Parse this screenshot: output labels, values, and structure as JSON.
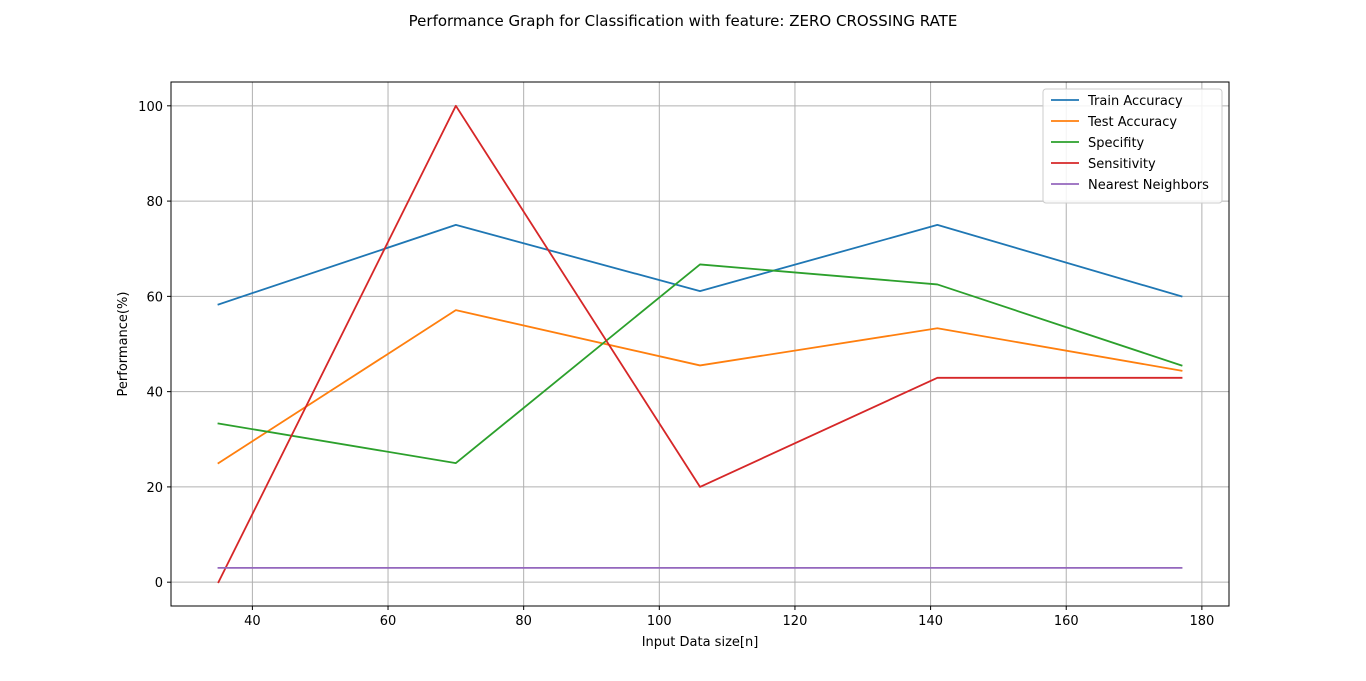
{
  "chart_data": {
    "type": "line",
    "title": "Performance Graph for Classification with feature: ZERO CROSSING RATE",
    "xlabel": "Input Data size[n]",
    "ylabel": "Performance(%)",
    "xlim": [
      28,
      184
    ],
    "ylim": [
      -5,
      105
    ],
    "xticks": [
      40,
      60,
      80,
      100,
      120,
      140,
      160,
      180
    ],
    "yticks": [
      0,
      20,
      40,
      60,
      80,
      100
    ],
    "grid": true,
    "legend_position": "top-right",
    "x": [
      35,
      70,
      106,
      141,
      177
    ],
    "series": [
      {
        "name": "Train Accuracy",
        "color": "#1f77b4",
        "values": [
          58.3,
          75.0,
          61.1,
          75.0,
          60.0
        ]
      },
      {
        "name": "Test Accuracy",
        "color": "#ff7f0e",
        "values": [
          25.0,
          57.1,
          45.5,
          53.3,
          44.4
        ]
      },
      {
        "name": "Specifity",
        "color": "#2ca02c",
        "values": [
          33.3,
          25.0,
          66.7,
          62.5,
          45.5
        ]
      },
      {
        "name": "Sensitivity",
        "color": "#d62728",
        "values": [
          0.0,
          100.0,
          20.0,
          42.9,
          42.9
        ]
      },
      {
        "name": "Nearest Neighbors",
        "color": "#9467bd",
        "values": [
          3.0,
          3.0,
          3.0,
          3.0,
          3.0
        ]
      }
    ]
  }
}
